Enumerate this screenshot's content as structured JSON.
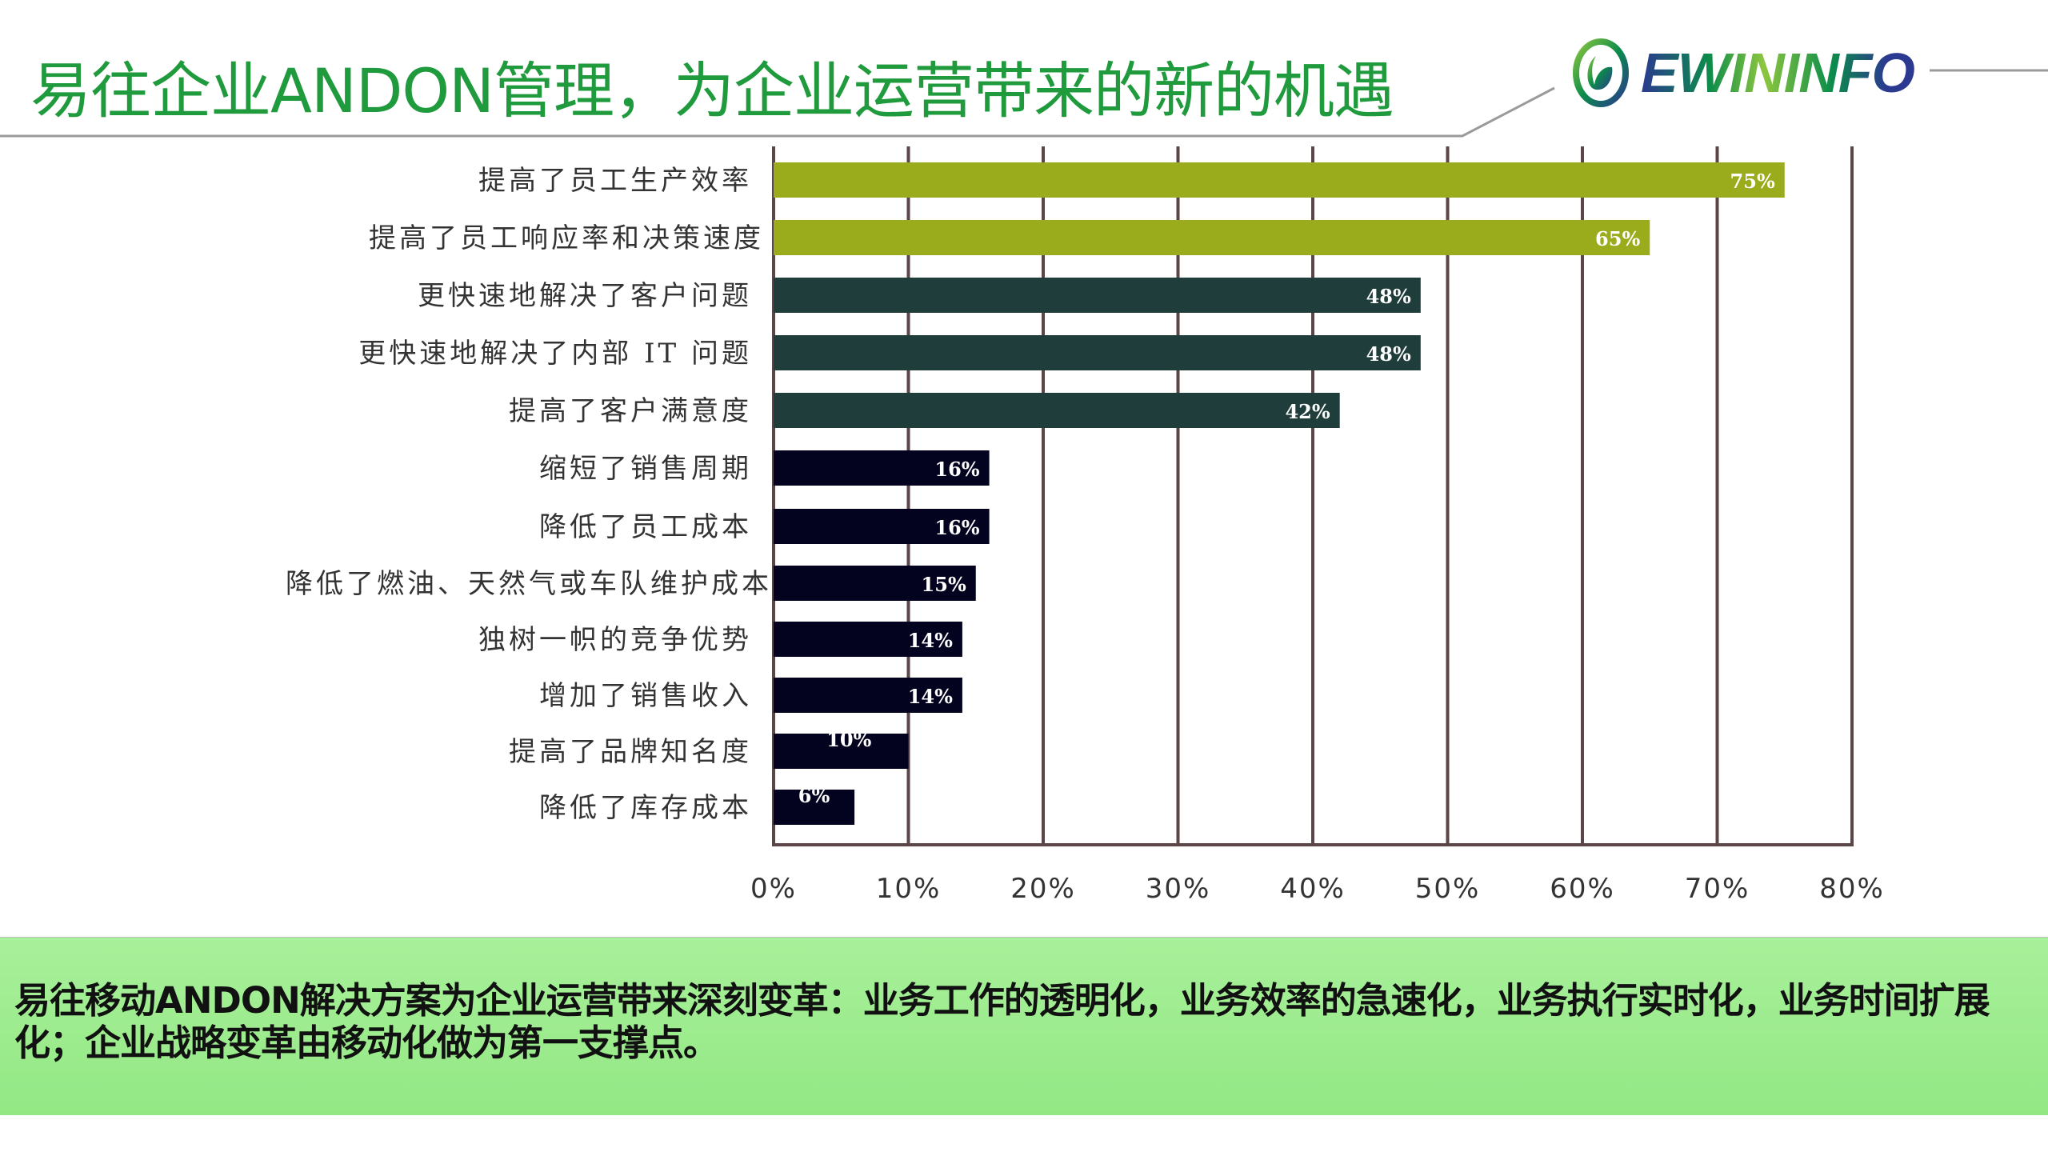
{
  "header": {
    "title": "易往企业ANDON管理，为企业运营带来的新的机遇",
    "logo_text": "EWININFO"
  },
  "chart_data": {
    "type": "bar",
    "orientation": "horizontal",
    "categories": [
      "提高了员工生产效率",
      "提高了员工响应率和决策速度",
      "更快速地解决了客户问题",
      "更快速地解决了内部 IT 问题",
      "提高了客户满意度",
      "缩短了销售周期",
      "降低了员工成本",
      "降低了燃油、天然气或车队维护成本",
      "独树一帜的竞争优势",
      "增加了销售收入",
      "提高了品牌知名度",
      "降低了库存成本"
    ],
    "values": [
      75,
      65,
      48,
      48,
      42,
      16,
      16,
      15,
      14,
      14,
      10,
      6
    ],
    "data_labels": [
      "75%",
      "65%",
      "48%",
      "48%",
      "42%",
      "16%",
      "16%",
      "15%",
      "14%",
      "14%",
      "10%",
      "6%"
    ],
    "bar_colors": [
      "#9aab1b",
      "#9aab1b",
      "#1e3d3b",
      "#1e3d3b",
      "#1e3d3b",
      "#03031f",
      "#03031f",
      "#03031f",
      "#03031f",
      "#03031f",
      "#03031f",
      "#03031f"
    ],
    "xlim": [
      0,
      80
    ],
    "x_ticks": [
      "0%",
      "10%",
      "20%",
      "30%",
      "40%",
      "50%",
      "60%",
      "70%",
      "80%"
    ],
    "grid": true,
    "title": "",
    "xlabel": "",
    "ylabel": ""
  },
  "summary": {
    "text": "易往移动ANDON解决方案为企业运营带来深刻变革：业务工作的透明化，业务效率的急速化，业务执行实时化，业务时间扩展化；企业战略变革由移动化做为第一支撑点。"
  }
}
